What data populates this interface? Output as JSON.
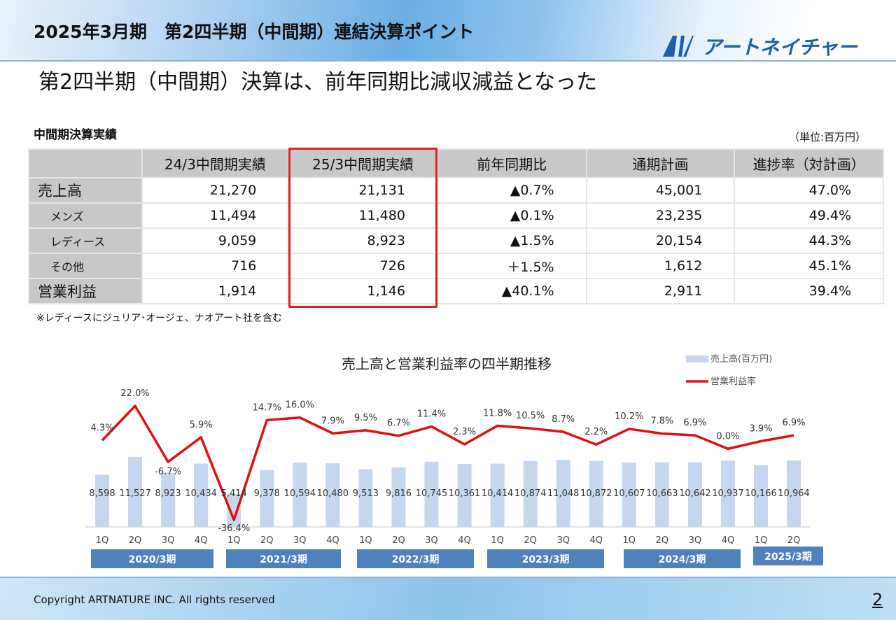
{
  "header": {
    "title": "2025年3月期　第2四半期（中間期）連結決算ポイント",
    "logo_text": "アートネイチャー",
    "brand_color": "#1a5fb0"
  },
  "subtitle": "第2四半期（中間期）決算は、前年同期比減収減益となった",
  "table": {
    "title": "中間期決算実績",
    "unit": "（単位:百万円）",
    "columns": [
      "",
      "24/3中間期実績",
      "25/3中間期実績",
      "前年同期比",
      "通期計画",
      "進捗率（対計画）"
    ],
    "rows": [
      {
        "label": "売上高",
        "level": "main",
        "values": [
          "21,270",
          "21,131",
          "▲0.7%",
          "45,001",
          "47.0%"
        ]
      },
      {
        "label": "メンズ",
        "level": "sub",
        "values": [
          "11,494",
          "11,480",
          "▲0.1%",
          "23,235",
          "49.4%"
        ]
      },
      {
        "label": "レディース",
        "level": "sub",
        "values": [
          "9,059",
          "8,923",
          "▲1.5%",
          "20,154",
          "44.3%"
        ]
      },
      {
        "label": "その他",
        "level": "sub",
        "values": [
          "716",
          "726",
          "＋1.5%",
          "1,612",
          "45.1%"
        ]
      },
      {
        "label": "営業利益",
        "level": "main",
        "values": [
          "1,914",
          "1,146",
          "▲40.1%",
          "2,911",
          "39.4%"
        ]
      }
    ],
    "highlight_column": "25/3中間期実績",
    "highlight_color": "#e02020",
    "note": "※レディースにジュリア･オージェ、ナオアート社を含む"
  },
  "chart_data": {
    "type": "bar+line",
    "title": "売上高と営業利益率の四半期推移",
    "categories": [
      "1Q",
      "2Q",
      "3Q",
      "4Q",
      "1Q",
      "2Q",
      "3Q",
      "4Q",
      "1Q",
      "2Q",
      "3Q",
      "4Q",
      "1Q",
      "2Q",
      "3Q",
      "4Q",
      "1Q",
      "2Q",
      "3Q",
      "4Q",
      "1Q",
      "2Q"
    ],
    "groups": [
      {
        "label": "2020/3期",
        "count": 4
      },
      {
        "label": "2021/3期",
        "count": 4
      },
      {
        "label": "2022/3期",
        "count": 4
      },
      {
        "label": "2023/3期",
        "count": 4
      },
      {
        "label": "2024/3期",
        "count": 4
      },
      {
        "label": "2025/3期",
        "count": 2
      }
    ],
    "series": [
      {
        "name": "売上高(百万円)",
        "type": "bar",
        "color": "#c5d7ef",
        "values": [
          8598,
          11527,
          8923,
          10434,
          5414,
          9378,
          10594,
          10480,
          9513,
          9816,
          10745,
          10361,
          10414,
          10874,
          11048,
          10872,
          10607,
          10663,
          10642,
          10937,
          10166,
          10964
        ],
        "labels": [
          "8,598",
          "11,527",
          "8,923",
          "10,434",
          "5,414",
          "9,378",
          "10,594",
          "10,480",
          "9,513",
          "9,816",
          "10,745",
          "10,361",
          "10,414",
          "10,874",
          "11,048",
          "10,872",
          "10,607",
          "10,663",
          "10,642",
          "10,937",
          "10,166",
          "10,964"
        ]
      },
      {
        "name": "営業利益率",
        "type": "line",
        "color": "#e01010",
        "values": [
          4.3,
          22.0,
          -6.7,
          5.9,
          -36.4,
          14.7,
          16.0,
          7.9,
          9.5,
          6.7,
          11.4,
          2.3,
          11.8,
          10.5,
          8.7,
          2.2,
          10.2,
          7.8,
          6.9,
          0.0,
          3.9,
          6.9
        ],
        "labels": [
          "4.3%",
          "22.0%",
          "-6.7%",
          "5.9%",
          "-36.4%",
          "14.7%",
          "16.0%",
          "7.9%",
          "9.5%",
          "6.7%",
          "11.4%",
          "2.3%",
          "11.8%",
          "10.5%",
          "8.7%",
          "2.2%",
          "10.2%",
          "7.8%",
          "6.9%",
          "0.0%",
          "3.9%",
          "6.9%"
        ]
      }
    ],
    "legend": "top-right",
    "group_color": "#4f81bd",
    "grid": false
  },
  "footer": {
    "copyright": "Copyright ARTNATURE INC. All rights reserved",
    "page": "2"
  }
}
